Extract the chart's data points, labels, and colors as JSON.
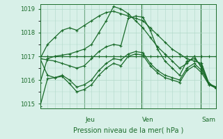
{
  "bg_color": "#d8f0e8",
  "grid_color": "#b0d8c8",
  "line_color": "#1a6b2a",
  "marker_color": "#1a6b2a",
  "xlabel": "Pression niveau de la mer( hPa )",
  "ylim": [
    1014.8,
    1019.2
  ],
  "yticks": [
    1015,
    1016,
    1017,
    1018,
    1019
  ],
  "day_labels": [
    "Jeu",
    "Ven",
    "Sam"
  ],
  "day_positions": [
    0.25,
    0.575,
    0.91
  ],
  "series": [
    [
      1015.9,
      1016.9,
      1017.0,
      1017.05,
      1017.1,
      1017.2,
      1017.3,
      1017.5,
      1018.0,
      1018.5,
      1019.1,
      1019.0,
      1018.8,
      1018.5,
      1018.2,
      1017.8,
      1017.4,
      1017.1,
      1016.8,
      1016.5,
      1016.7,
      1017.0,
      1016.5,
      1015.8,
      1015.7
    ],
    [
      1016.9,
      1016.85,
      1016.8,
      1016.7,
      1016.6,
      1016.5,
      1016.6,
      1016.9,
      1017.2,
      1017.4,
      1017.5,
      1017.45,
      1018.6,
      1018.7,
      1018.65,
      1018.1,
      1017.3,
      1016.8,
      1016.5,
      1016.2,
      1016.8,
      1016.9,
      1016.6,
      1015.85,
      1015.7
    ],
    [
      1016.9,
      1016.2,
      1016.1,
      1016.15,
      1015.85,
      1015.5,
      1015.6,
      1015.8,
      1016.2,
      1016.5,
      1016.7,
      1016.6,
      1017.0,
      1017.1,
      1017.05,
      1016.6,
      1016.3,
      1016.1,
      1016.0,
      1015.9,
      1016.4,
      1016.6,
      1016.3,
      1015.8,
      1015.65
    ],
    [
      1014.9,
      1016.05,
      1016.1,
      1016.2,
      1016.0,
      1015.7,
      1015.8,
      1016.0,
      1016.4,
      1016.7,
      1016.9,
      1016.85,
      1017.1,
      1017.2,
      1017.15,
      1016.7,
      1016.4,
      1016.2,
      1016.1,
      1016.0,
      1016.5,
      1016.7,
      1016.4,
      1015.85,
      1015.65
    ],
    [
      1017.0,
      1017.0,
      1017.0,
      1017.0,
      1017.0,
      1017.0,
      1017.0,
      1017.0,
      1017.0,
      1017.0,
      1017.0,
      1017.0,
      1017.0,
      1017.0,
      1017.0,
      1017.0,
      1017.0,
      1017.0,
      1017.0,
      1017.0,
      1017.0,
      1017.0,
      1017.0,
      1017.0,
      1017.0
    ],
    [
      1016.9,
      1017.5,
      1017.8,
      1018.1,
      1018.2,
      1018.1,
      1018.3,
      1018.5,
      1018.7,
      1018.85,
      1018.9,
      1018.8,
      1018.7,
      1018.6,
      1018.5,
      1018.2,
      1017.9,
      1017.6,
      1017.3,
      1017.1,
      1016.9,
      1016.8,
      1016.7,
      1015.85,
      1015.65
    ]
  ]
}
